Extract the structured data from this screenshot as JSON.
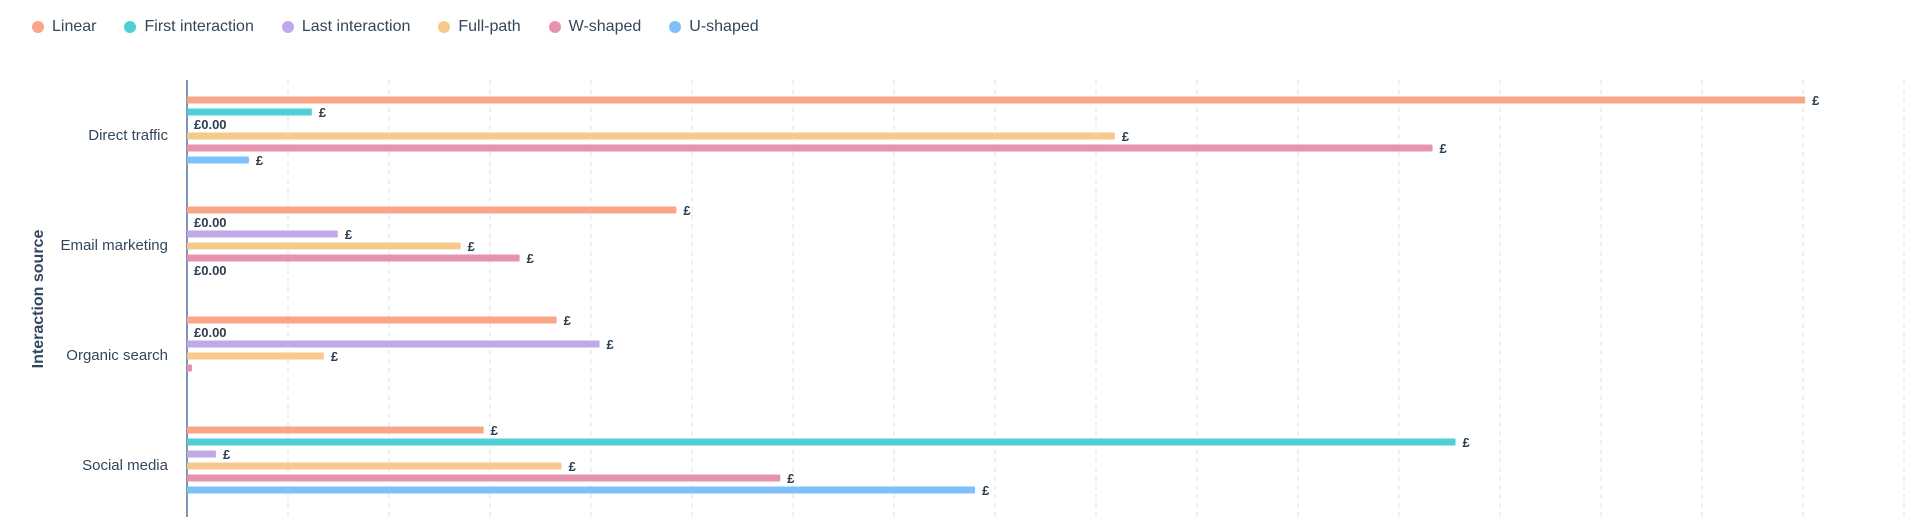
{
  "chart_data": {
    "type": "bar",
    "orientation": "horizontal",
    "ylabel": "Interaction source",
    "categories": [
      "Direct traffic",
      "Email marketing",
      "Organic search",
      "Social media"
    ],
    "grid": true,
    "legend_position": "top-left",
    "series": [
      {
        "name": "Linear",
        "color": "#f8a58a",
        "values": [
          1620,
          490,
          370,
          297
        ],
        "labels": [
          "£",
          "£",
          "£",
          "£"
        ]
      },
      {
        "name": "First interaction",
        "color": "#4fcfd6",
        "values": [
          125,
          0,
          0,
          1270
        ],
        "labels": [
          "£",
          "£0.00",
          "£0.00",
          "£"
        ]
      },
      {
        "name": "Last interaction",
        "color": "#c0a9e9",
        "values": [
          0,
          151,
          413,
          29
        ],
        "labels": [
          "£0.00",
          "£",
          "£",
          "£"
        ]
      },
      {
        "name": "Full-path",
        "color": "#f6c98d",
        "values": [
          929,
          274,
          137,
          375
        ],
        "labels": [
          "£",
          "£",
          "£",
          "£"
        ]
      },
      {
        "name": "W-shaped",
        "color": "#e893ae",
        "values": [
          1247,
          333,
          5,
          594
        ],
        "labels": [
          "£",
          "£",
          "",
          "£"
        ]
      },
      {
        "name": "U-shaped",
        "color": "#7fc0f8",
        "values": [
          62,
          0,
          0,
          789
        ],
        "labels": [
          "£",
          "£0.00",
          "",
          "£"
        ]
      }
    ],
    "xlim": [
      0,
      1720
    ]
  }
}
